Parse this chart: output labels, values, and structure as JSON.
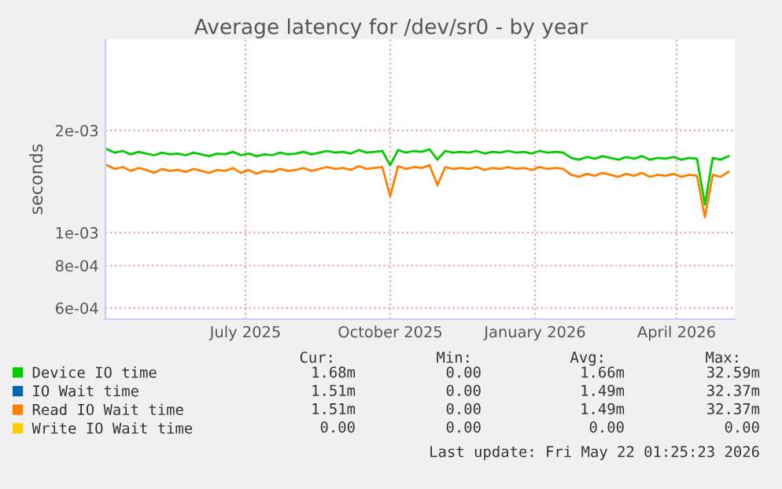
{
  "chart_data": {
    "type": "line",
    "title": "Average latency for /dev/sr0 - by year",
    "ylabel": "seconds",
    "log": "y",
    "grid": true,
    "legend": "bottom",
    "marker": "none",
    "line_style": "solid",
    "xlim": [
      "2025-04-17",
      "2026-05-22"
    ],
    "xticks": [
      {
        "value": "2025-07-15",
        "label": "July 2025"
      },
      {
        "value": "2025-10-15",
        "label": "October 2025"
      },
      {
        "value": "2026-01-15",
        "label": "January 2026"
      },
      {
        "value": "2026-04-15",
        "label": "April 2026"
      }
    ],
    "ylim": [
      0.000556,
      0.00371
    ],
    "yticks": [
      {
        "value": 0.0006,
        "label": "6e-04"
      },
      {
        "value": 0.0008,
        "label": "8e-04"
      },
      {
        "value": 0.001,
        "label": "1e-03"
      },
      {
        "value": 0.002,
        "label": "2e-03"
      }
    ],
    "x": [
      "2025-04-18",
      "2025-04-23",
      "2025-04-28",
      "2025-05-03",
      "2025-05-08",
      "2025-05-13",
      "2025-05-18",
      "2025-05-23",
      "2025-05-28",
      "2025-06-02",
      "2025-06-07",
      "2025-06-12",
      "2025-06-17",
      "2025-06-22",
      "2025-06-27",
      "2025-07-02",
      "2025-07-07",
      "2025-07-12",
      "2025-07-17",
      "2025-07-22",
      "2025-07-27",
      "2025-08-01",
      "2025-08-06",
      "2025-08-11",
      "2025-08-16",
      "2025-08-21",
      "2025-08-26",
      "2025-08-31",
      "2025-09-05",
      "2025-09-10",
      "2025-09-15",
      "2025-09-20",
      "2025-09-25",
      "2025-09-30",
      "2025-10-05",
      "2025-10-10",
      "2025-10-15",
      "2025-10-20",
      "2025-10-25",
      "2025-10-30",
      "2025-11-04",
      "2025-11-09",
      "2025-11-14",
      "2025-11-19",
      "2025-11-24",
      "2025-11-29",
      "2025-12-04",
      "2025-12-09",
      "2025-12-14",
      "2025-12-19",
      "2025-12-24",
      "2025-12-29",
      "2026-01-03",
      "2026-01-08",
      "2026-01-13",
      "2026-01-18",
      "2026-01-23",
      "2026-01-28",
      "2026-02-02",
      "2026-02-07",
      "2026-02-12",
      "2026-02-17",
      "2026-02-22",
      "2026-02-27",
      "2026-03-04",
      "2026-03-09",
      "2026-03-14",
      "2026-03-19",
      "2026-03-24",
      "2026-03-29",
      "2026-04-03",
      "2026-04-08",
      "2026-04-13",
      "2026-04-18",
      "2026-04-23",
      "2026-04-28",
      "2026-05-03",
      "2026-05-08",
      "2026-05-13",
      "2026-05-18"
    ],
    "series": [
      {
        "name": "Device IO time",
        "color": "#00cc00",
        "values": [
          0.00176,
          0.00172,
          0.00174,
          0.0017,
          0.00173,
          0.00171,
          0.00169,
          0.00172,
          0.0017,
          0.00171,
          0.00169,
          0.00172,
          0.0017,
          0.00168,
          0.00171,
          0.0017,
          0.00173,
          0.00169,
          0.00171,
          0.00168,
          0.0017,
          0.00169,
          0.00172,
          0.0017,
          0.00171,
          0.00173,
          0.0017,
          0.00172,
          0.00174,
          0.00172,
          0.00173,
          0.00171,
          0.00175,
          0.00172,
          0.00173,
          0.00174,
          0.00158,
          0.00175,
          0.00172,
          0.00174,
          0.00173,
          0.00176,
          0.00164,
          0.00174,
          0.00172,
          0.00173,
          0.00172,
          0.00174,
          0.00171,
          0.00173,
          0.00172,
          0.00174,
          0.00172,
          0.00173,
          0.00171,
          0.00174,
          0.00172,
          0.00173,
          0.00172,
          0.00166,
          0.00164,
          0.00167,
          0.00165,
          0.00168,
          0.00166,
          0.00164,
          0.00167,
          0.00165,
          0.00168,
          0.00164,
          0.00166,
          0.00165,
          0.00167,
          0.00164,
          0.00166,
          0.00165,
          0.00121,
          0.00166,
          0.00164,
          0.00168
        ]
      },
      {
        "name": "IO Wait time",
        "color": "#0066b3",
        "values": [
          null,
          null,
          null,
          null,
          null,
          null,
          null,
          null,
          null,
          null,
          null,
          null,
          null,
          null,
          null,
          null,
          null,
          null,
          null,
          null,
          null,
          null,
          null,
          null,
          null,
          null,
          null,
          null,
          null,
          null,
          null,
          null,
          null,
          null,
          null,
          null,
          null,
          null,
          null,
          null,
          null,
          null,
          null,
          null,
          null,
          null,
          null,
          null,
          null,
          null,
          null,
          null,
          null,
          null,
          null,
          null,
          null,
          null,
          null,
          null,
          null,
          null,
          null,
          null,
          null,
          null,
          null,
          null,
          null,
          null,
          null,
          null,
          null,
          null,
          null,
          null,
          null,
          null,
          null,
          null
        ]
      },
      {
        "name": "Read IO Wait time",
        "color": "#ff8000",
        "values": [
          0.00158,
          0.00154,
          0.00156,
          0.00152,
          0.00155,
          0.00153,
          0.0015,
          0.00154,
          0.00152,
          0.00153,
          0.00151,
          0.00154,
          0.00152,
          0.0015,
          0.00153,
          0.00152,
          0.00155,
          0.0015,
          0.00153,
          0.00149,
          0.00152,
          0.00151,
          0.00154,
          0.00152,
          0.00153,
          0.00155,
          0.00152,
          0.00154,
          0.00156,
          0.00154,
          0.00155,
          0.00153,
          0.00157,
          0.00154,
          0.00155,
          0.00156,
          0.00128,
          0.00157,
          0.00154,
          0.00156,
          0.00155,
          0.00158,
          0.00138,
          0.00156,
          0.00154,
          0.00155,
          0.00154,
          0.00156,
          0.00153,
          0.00155,
          0.00154,
          0.00156,
          0.00154,
          0.00155,
          0.00153,
          0.00156,
          0.00154,
          0.00155,
          0.00154,
          0.00148,
          0.00146,
          0.00149,
          0.00147,
          0.0015,
          0.00148,
          0.00146,
          0.00149,
          0.00147,
          0.0015,
          0.00146,
          0.00148,
          0.00147,
          0.00149,
          0.00146,
          0.00148,
          0.00147,
          0.00111,
          0.00148,
          0.00146,
          0.00151
        ]
      },
      {
        "name": "Write IO Wait time",
        "color": "#ffcc00",
        "values": [
          null,
          null,
          null,
          null,
          null,
          null,
          null,
          null,
          null,
          null,
          null,
          null,
          null,
          null,
          null,
          null,
          null,
          null,
          null,
          null,
          null,
          null,
          null,
          null,
          null,
          null,
          null,
          null,
          null,
          null,
          null,
          null,
          null,
          null,
          null,
          null,
          null,
          null,
          null,
          null,
          null,
          null,
          null,
          null,
          null,
          null,
          null,
          null,
          null,
          null,
          null,
          null,
          null,
          null,
          null,
          null,
          null,
          null,
          null,
          null,
          null,
          null,
          null,
          null,
          null,
          null,
          null,
          null,
          null,
          null,
          null,
          null,
          null,
          null,
          null,
          null,
          null,
          null,
          null,
          null
        ]
      }
    ],
    "annotations": [
      "Cur:",
      "Min:",
      "Avg:",
      "Max:",
      "1.68m",
      "0.00",
      "1.66m",
      "32.59m",
      "1.51m",
      "0.00",
      "1.49m",
      "32.37m",
      "1.51m",
      "0.00",
      "1.49m",
      "32.37m",
      "0.00",
      "0.00",
      "0.00",
      "0.00",
      "Last update: Fri May 22 01:25:23 2026"
    ]
  }
}
